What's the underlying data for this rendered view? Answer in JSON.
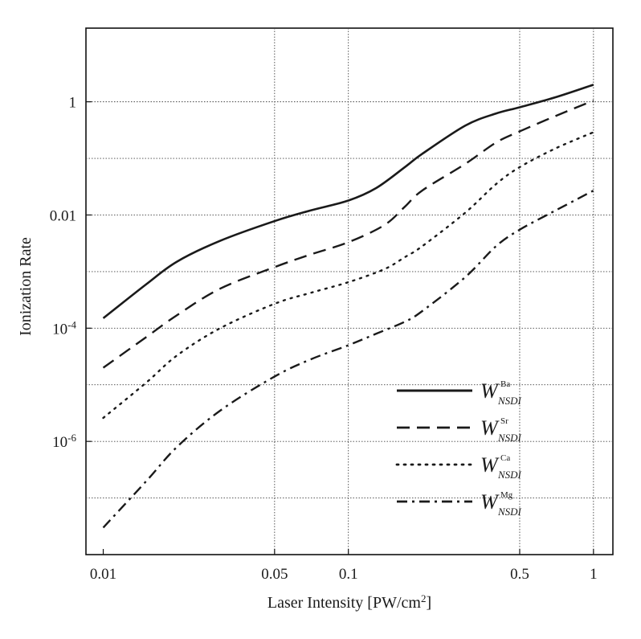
{
  "chart_data": {
    "type": "line",
    "title": "",
    "xlabel": "Laser Intensity [PW/cm",
    "xlabel_sup": "2",
    "xlabel_end": "]",
    "ylabel": "Ionization Rate",
    "xscale": "log",
    "yscale": "log",
    "xlim": [
      0.0085,
      1.2
    ],
    "ylim": [
      1e-08,
      20
    ],
    "xticks": [
      {
        "value": 0.01,
        "label": "0.01"
      },
      {
        "value": 0.05,
        "label": "0.05"
      },
      {
        "value": 0.1,
        "label": "0.1"
      },
      {
        "value": 0.5,
        "label": "0.5"
      },
      {
        "value": 1,
        "label": "1"
      }
    ],
    "yticks": [
      {
        "value": 1,
        "base": "1",
        "exp": ""
      },
      {
        "value": 0.01,
        "base": "0.01",
        "exp": ""
      },
      {
        "value": 0.0001,
        "base": "10",
        "exp": "-4"
      },
      {
        "value": 1e-06,
        "base": "10",
        "exp": "-6"
      }
    ],
    "xgrid": [
      0.05,
      0.1,
      0.5,
      1
    ],
    "ygrid": [
      1,
      0.1,
      0.01,
      0.001,
      0.0001,
      1e-05,
      1e-06,
      1e-07
    ],
    "grid": true,
    "legend_position": "bottom-right",
    "series": [
      {
        "name": "W",
        "sub": "NSDI",
        "sup": "Ba",
        "style": "solid",
        "x": [
          0.01,
          0.015,
          0.02,
          0.03,
          0.05,
          0.07,
          0.1,
          0.13,
          0.17,
          0.2,
          0.3,
          0.4,
          0.5,
          0.7,
          1
        ],
        "y": [
          0.00015,
          0.0006,
          0.0015,
          0.0035,
          0.0078,
          0.012,
          0.018,
          0.03,
          0.07,
          0.12,
          0.38,
          0.62,
          0.8,
          1.2,
          2.0
        ]
      },
      {
        "name": "W",
        "sub": "NSDI",
        "sup": "Sr",
        "style": "dashed",
        "x": [
          0.01,
          0.015,
          0.02,
          0.03,
          0.05,
          0.07,
          0.1,
          0.14,
          0.17,
          0.2,
          0.3,
          0.4,
          0.5,
          0.7,
          1
        ],
        "y": [
          2e-05,
          7e-05,
          0.00017,
          0.0005,
          0.0012,
          0.002,
          0.0033,
          0.0066,
          0.014,
          0.027,
          0.08,
          0.19,
          0.3,
          0.56,
          1.05
        ]
      },
      {
        "name": "W",
        "sub": "NSDI",
        "sup": "Ca",
        "style": "dotted",
        "x": [
          0.01,
          0.015,
          0.02,
          0.03,
          0.05,
          0.07,
          0.1,
          0.14,
          0.17,
          0.2,
          0.3,
          0.4,
          0.5,
          0.7,
          1
        ],
        "y": [
          2.6e-06,
          1.1e-05,
          3.3e-05,
          0.0001,
          0.00027,
          0.00042,
          0.00065,
          0.0011,
          0.0018,
          0.0028,
          0.011,
          0.035,
          0.07,
          0.15,
          0.29
        ]
      },
      {
        "name": "W",
        "sub": "NSDI",
        "sup": "Mg",
        "style": "dash-dot",
        "x": [
          0.01,
          0.015,
          0.02,
          0.03,
          0.05,
          0.07,
          0.1,
          0.13,
          0.17,
          0.2,
          0.3,
          0.4,
          0.5,
          0.7,
          1
        ],
        "y": [
          3e-08,
          2e-07,
          8e-07,
          3.5e-06,
          1.4e-05,
          2.8e-05,
          5e-05,
          8e-05,
          0.00013,
          0.0002,
          0.0008,
          0.0028,
          0.0055,
          0.012,
          0.027
        ]
      }
    ]
  }
}
